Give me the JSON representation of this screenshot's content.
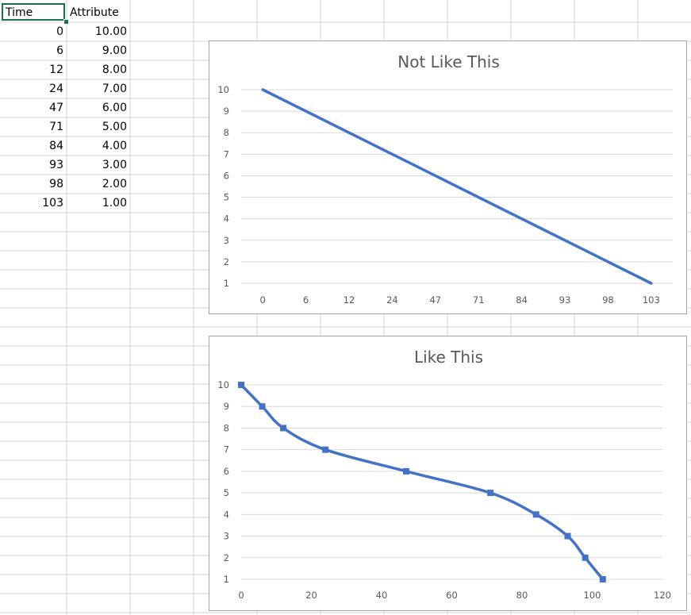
{
  "sheet": {
    "headers": {
      "col_a": "Time",
      "col_b": "Attribute"
    },
    "rows": [
      {
        "time": "0",
        "attribute": "10.00"
      },
      {
        "time": "6",
        "attribute": "9.00"
      },
      {
        "time": "12",
        "attribute": "8.00"
      },
      {
        "time": "24",
        "attribute": "7.00"
      },
      {
        "time": "47",
        "attribute": "6.00"
      },
      {
        "time": "71",
        "attribute": "5.00"
      },
      {
        "time": "84",
        "attribute": "4.00"
      },
      {
        "time": "93",
        "attribute": "3.00"
      },
      {
        "time": "98",
        "attribute": "2.00"
      },
      {
        "time": "103",
        "attribute": "1.00"
      }
    ],
    "gridline_color": "#d4d4d4",
    "selection_color": "#1e7145"
  },
  "chart_data": [
    {
      "type": "line",
      "title": "Not Like This",
      "categories": [
        "0",
        "6",
        "12",
        "24",
        "47",
        "71",
        "84",
        "93",
        "98",
        "103"
      ],
      "series": [
        {
          "values": [
            10,
            9,
            8,
            7,
            6,
            5,
            4,
            3,
            2,
            1
          ]
        }
      ],
      "ylim": [
        1,
        10
      ],
      "yticks": [
        1,
        2,
        3,
        4,
        5,
        6,
        7,
        8,
        9,
        10
      ],
      "grid": true,
      "markers": false,
      "smooth": false,
      "line_color": "#4472c4"
    },
    {
      "type": "scatter",
      "title": "Like This",
      "series": [
        {
          "x": [
            0,
            6,
            12,
            24,
            47,
            71,
            84,
            93,
            98,
            103
          ],
          "y": [
            10,
            9,
            8,
            7,
            6,
            5,
            4,
            3,
            2,
            1
          ]
        }
      ],
      "xlim": [
        0,
        120
      ],
      "xticks": [
        0,
        20,
        40,
        60,
        80,
        100,
        120
      ],
      "ylim": [
        1,
        10
      ],
      "yticks": [
        1,
        2,
        3,
        4,
        5,
        6,
        7,
        8,
        9,
        10
      ],
      "grid": true,
      "markers": true,
      "smooth": true,
      "line_color": "#4472c4"
    }
  ]
}
